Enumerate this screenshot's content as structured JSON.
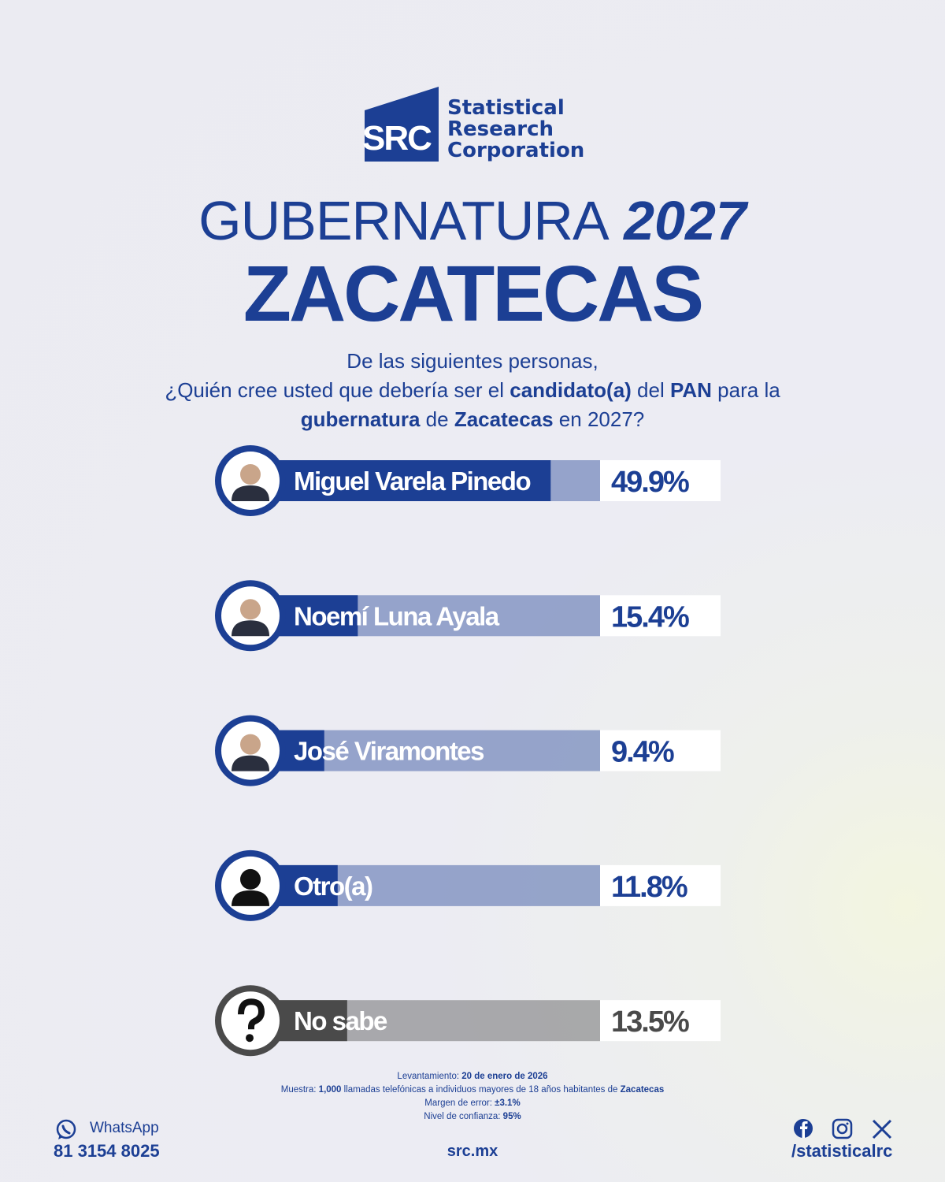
{
  "logo": {
    "mark": "SRC",
    "lines": [
      "Statistical",
      "Research",
      "Corporation"
    ]
  },
  "title": {
    "main": "GUBERNATURA",
    "year": "2027"
  },
  "subtitle": "ZACATECAS",
  "question": [
    [
      {
        "text": "De las siguientes personas,"
      }
    ],
    [
      {
        "text": "¿Quién cree usted que debería ser el "
      },
      {
        "text": "candidato(a)",
        "bold": true
      },
      {
        "text": " del "
      },
      {
        "text": "PAN",
        "bold": true
      },
      {
        "text": " para la"
      }
    ],
    [
      {
        "text": "gubernatura",
        "bold": true
      },
      {
        "text": " de "
      },
      {
        "text": "Zacatecas",
        "bold": true
      },
      {
        "text": " en 2027?"
      }
    ]
  ],
  "chart_data": {
    "type": "bar",
    "categories": [
      "Miguel Varela Pinedo",
      "Noemí Luna Ayala",
      "José Viramontes",
      "Otro(a)",
      "No sabe"
    ],
    "values": [
      49.9,
      15.4,
      9.4,
      11.8,
      13.5
    ],
    "value_labels": [
      "49.9%",
      "15.4%",
      "9.4%",
      "11.8%",
      "13.5%"
    ],
    "colors": [
      "#1c3f94",
      "#1c3f94",
      "#1c3f94",
      "#1c3f94",
      "#4a4a4a"
    ]
  },
  "methodology": [
    [
      {
        "text": "Levantamiento: "
      },
      {
        "text": "20 de enero de 2026",
        "bold": true
      }
    ],
    [
      {
        "text": "Muestra: "
      },
      {
        "text": "1,000",
        "bold": true
      },
      {
        "text": " llamadas telefónicas a individuos mayores de 18 años habitantes de "
      },
      {
        "text": "Zacatecas",
        "bold": true
      }
    ],
    [
      {
        "text": "Margen de error: "
      },
      {
        "text": "±3.1%",
        "bold": true
      }
    ],
    [
      {
        "text": "Nivel de confianza: "
      },
      {
        "text": "95%",
        "bold": true
      }
    ]
  ],
  "footer": {
    "whatsapp": "WhatsApp",
    "phone": "81 3154 8025",
    "site": "src.mx",
    "social": "/statisticalrc"
  }
}
